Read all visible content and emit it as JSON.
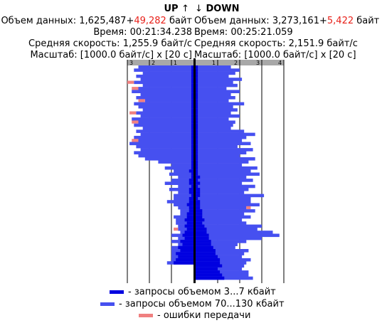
{
  "up": {
    "title": "UP",
    "arrow": "↑",
    "volume_label": "Объем данных:",
    "volume_value": "1,625,487",
    "volume_plus": "+",
    "volume_error": "49,282",
    "volume_unit": "байт",
    "time_label": "Время:",
    "time_value": "00:21:34.238",
    "speed_label": "Средняя скорость:",
    "speed_value": "1,255.9 байт/с",
    "scale_label": "Масштаб:",
    "scale_value": "[1000.0 байт/с] x [20 с]"
  },
  "down": {
    "title": "DOWN",
    "arrow": "↓",
    "volume_label": "Объем данных:",
    "volume_value": "3,273,161",
    "volume_plus": "+",
    "volume_error": "5,422",
    "volume_unit": "байт",
    "time_label": "Время:",
    "time_value": "00:25:21.059",
    "speed_label": "Средняя скорость:",
    "speed_value": "2,151.9 байт/с",
    "scale_label": "Масштаб:",
    "scale_value": "[1000.0 байт/с] x [20 с]"
  },
  "legend": {
    "small": "- запросы объемом 3...7 кбайт",
    "large": "- запросы объемом 70...130 кбайт",
    "errors": "- ошибки передачи"
  },
  "colors": {
    "small": "#0000e0",
    "large": "#4650f0",
    "errors": "#f08080",
    "axis_bar": "#a8a8a8"
  },
  "chart_data": {
    "type": "bar",
    "orientation": "horizontal-mirrored",
    "x_unit": "1000 байт/с",
    "y_unit": "20 с",
    "up_ticks": [
      "3",
      "2",
      "1"
    ],
    "down_ticks": [
      "1",
      "2",
      "3",
      "4"
    ],
    "up_xlim": [
      0,
      3
    ],
    "down_xlim": [
      0,
      4
    ],
    "up_series": {
      "small": [
        0.1,
        0.1,
        0.1,
        0.1,
        0.1,
        0.1,
        0.1,
        0.1,
        0.1,
        0.1,
        0.1,
        0.1,
        0.1,
        0.1,
        0.1,
        0.1,
        0.1,
        0.1,
        0.1,
        0.1,
        0.1,
        0.1,
        0.1,
        0.1,
        0.1,
        0.1,
        0.1,
        0.1,
        0.1,
        0.1,
        0.1,
        0.1,
        0.1,
        0.1,
        0.2,
        0.1,
        0.1,
        0.2,
        0.2,
        0.1,
        0.2,
        0.2,
        0.1,
        0.2,
        0.2,
        0.3,
        0.2,
        0.2,
        0.3,
        0.3,
        0.4,
        0.3,
        0.4,
        0.3,
        0.4,
        0.5,
        0.4,
        0.6,
        0.5,
        0.7,
        0.6,
        0.8,
        0.7,
        0.8,
        0.9
      ],
      "large": [
        2.4,
        2.6,
        2.2,
        2.5,
        2.3,
        2.6,
        2.2,
        2.4,
        2.7,
        2.3,
        2.5,
        2.1,
        2.6,
        2.4,
        2.2,
        2.5,
        2.3,
        2.7,
        2.4,
        2.6,
        2.2,
        2.5,
        2.3,
        2.6,
        2.4,
        2.8,
        2.5,
        2.3,
        2.6,
        2.4,
        2.1,
        1.5,
        0.9,
        1.2,
        0.7,
        1.0,
        0.6,
        0.8,
        1.1,
        0.6,
        0.9,
        0.5,
        0.8,
        0.7,
        1.0,
        0.6,
        0.5,
        0.4,
        0.3,
        0.6,
        0.4,
        0.5,
        0.3,
        0.4,
        0.2,
        0.5,
        0.3,
        0.4,
        0.2,
        0.3,
        0.4,
        0.2,
        0.3,
        0.2,
        0.3
      ],
      "errors": [
        0,
        0,
        0,
        0,
        0,
        0.3,
        0,
        0.3,
        0,
        0,
        0,
        0.3,
        0,
        0,
        0,
        0.3,
        0,
        0,
        0.3,
        0,
        0,
        0,
        0,
        0,
        0.3,
        0,
        0,
        0,
        0,
        0,
        0,
        0,
        0,
        0,
        0,
        0,
        0,
        0,
        0,
        0,
        0,
        0,
        0,
        0,
        0,
        0,
        0,
        0,
        0,
        0,
        0,
        0,
        0,
        0.2,
        0,
        0,
        0,
        0,
        0,
        0,
        0,
        0,
        0,
        0,
        0
      ]
    },
    "down_series": {
      "small": [
        0.1,
        0.1,
        0.1,
        0.1,
        0.1,
        0.1,
        0.1,
        0.1,
        0.1,
        0.1,
        0.1,
        0.1,
        0.1,
        0.1,
        0.1,
        0.1,
        0.1,
        0.1,
        0.1,
        0.1,
        0.1,
        0.1,
        0.1,
        0.1,
        0.1,
        0.1,
        0.1,
        0.1,
        0.1,
        0.1,
        0.1,
        0.1,
        0.1,
        0.1,
        0.1,
        0.1,
        0.2,
        0.1,
        0.2,
        0.1,
        0.2,
        0.2,
        0.2,
        0.1,
        0.2,
        0.2,
        0.2,
        0.3,
        0.3,
        0.3,
        0.4,
        0.3,
        0.4,
        0.5,
        0.5,
        0.6,
        0.6,
        0.7,
        0.7,
        0.8,
        0.9,
        0.9,
        1.0,
        1.1,
        1.1,
        1.2,
        1.0,
        1.1,
        1.2,
        1.3
      ],
      "large": [
        1.5,
        1.9,
        1.7,
        1.4,
        2.0,
        1.6,
        1.8,
        1.3,
        1.9,
        1.5,
        1.7,
        1.4,
        2.1,
        1.6,
        1.8,
        1.5,
        1.9,
        1.4,
        1.7,
        1.6,
        1.5,
        2.1,
        2.6,
        2.2,
        2.0,
        2.4,
        1.8,
        2.5,
        2.2,
        1.9,
        2.6,
        2.3,
        2.0,
        2.7,
        2.4,
        2.8,
        2.1,
        2.5,
        1.9,
        2.6,
        2.2,
        2.0,
        2.9,
        2.4,
        2.3,
        2.7,
        2.1,
        2.4,
        1.9,
        2.2,
        1.7,
        2.0,
        2.6,
        2.3,
        3.0,
        3.2,
        2.4,
        1.6,
        1.2,
        1.0,
        1.5,
        1.3,
        1.1,
        1.4,
        1.2,
        1.0,
        1.1,
        1.3,
        1.2,
        1.3
      ],
      "errors": [
        0,
        0,
        0,
        0,
        0,
        0,
        0,
        0,
        0,
        0,
        0,
        0,
        0,
        0,
        0,
        0,
        0,
        0,
        0,
        0,
        0,
        0,
        0,
        0,
        0,
        0,
        0,
        0,
        0,
        0,
        0,
        0,
        0,
        0,
        0,
        0,
        0,
        0,
        0,
        0,
        0,
        0,
        0,
        0,
        0,
        0,
        0.2,
        0,
        0,
        0,
        0,
        0,
        0,
        0,
        0,
        0,
        0,
        0,
        0,
        0,
        0,
        0,
        0,
        0,
        0,
        0,
        0,
        0,
        0,
        0
      ]
    }
  }
}
